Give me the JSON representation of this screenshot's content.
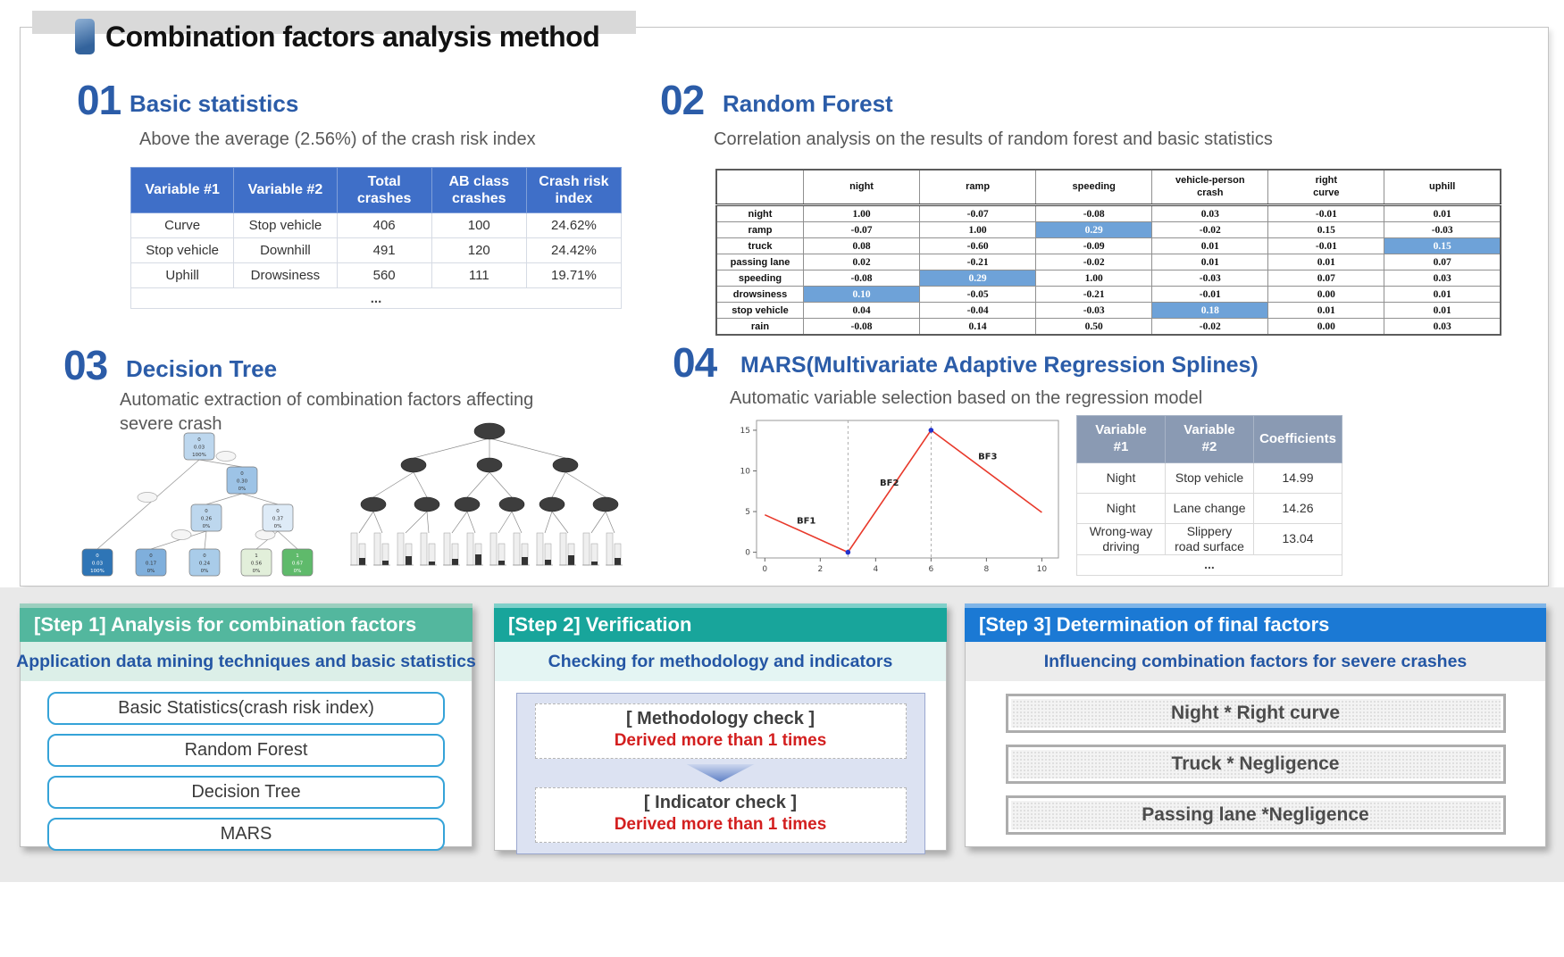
{
  "title": {
    "text": "Combination factors analysis method"
  },
  "icons": {
    "title_bullet": "rounded-rect-bullet",
    "verification_arrow": "chevron-down"
  },
  "colors": {
    "accent_blue": "#2b5ca8",
    "table_header_blue": "#3f6fc8",
    "matrix_highlight": "#6ea2d8",
    "mars_header_gray_blue": "#8a9ab3",
    "step1_teal": "#53b79e",
    "step2_teal": "#18a59b",
    "step3_blue": "#1b79d4",
    "alert_red": "#d31f1f",
    "line_red": "#e8392b"
  },
  "section1": {
    "number": "01",
    "title": "Basic statistics",
    "subtitle": "Above the average (2.56%) of the crash risk index",
    "table": {
      "headers": [
        "Variable #1",
        "Variable #2",
        "Total\ncrashes",
        "AB class\ncrashes",
        "Crash risk\nindex"
      ],
      "rows": [
        [
          "Curve",
          "Stop vehicle",
          "406",
          "100",
          "24.62%"
        ],
        [
          "Stop vehicle",
          "Downhill",
          "491",
          "120",
          "24.42%"
        ],
        [
          "Uphill",
          "Drowsiness",
          "560",
          "111",
          "19.71%"
        ]
      ],
      "ellipsis": "..."
    }
  },
  "section2": {
    "number": "02",
    "title": "Random Forest",
    "subtitle": "Correlation analysis on the results of random forest and basic statistics",
    "matrix": {
      "columns": [
        "night",
        "ramp",
        "speeding",
        "vehicle-person\ncrash",
        "right\ncurve",
        "uphill"
      ],
      "rows": [
        {
          "label": "night",
          "values": [
            "1.00",
            "-0.07",
            "-0.08",
            "0.03",
            "-0.01",
            "0.01"
          ],
          "highlight": []
        },
        {
          "label": "ramp",
          "values": [
            "-0.07",
            "1.00",
            "0.29",
            "-0.02",
            "0.15",
            "-0.03"
          ],
          "highlight": [
            2
          ]
        },
        {
          "label": "truck",
          "values": [
            "0.08",
            "-0.60",
            "-0.09",
            "0.01",
            "-0.01",
            "0.15"
          ],
          "highlight": [
            5
          ]
        },
        {
          "label": "passing lane",
          "values": [
            "0.02",
            "-0.21",
            "-0.02",
            "0.01",
            "0.01",
            "0.07"
          ],
          "highlight": []
        },
        {
          "label": "speeding",
          "values": [
            "-0.08",
            "0.29",
            "1.00",
            "-0.03",
            "0.07",
            "0.03"
          ],
          "highlight": [
            1
          ]
        },
        {
          "label": "drowsiness",
          "values": [
            "0.10",
            "-0.05",
            "-0.21",
            "-0.01",
            "0.00",
            "0.01"
          ],
          "highlight": [
            0
          ]
        },
        {
          "label": "stop vehicle",
          "values": [
            "0.04",
            "-0.04",
            "-0.03",
            "0.18",
            "0.01",
            "0.01"
          ],
          "highlight": [
            3
          ]
        },
        {
          "label": "rain",
          "values": [
            "-0.08",
            "0.14",
            "0.50",
            "-0.02",
            "0.00",
            "0.03"
          ],
          "highlight": []
        }
      ]
    }
  },
  "section3": {
    "number": "03",
    "title": "Decision Tree",
    "subtitle": "Automatic extraction of combination factors affecting\nsevere crash",
    "tree_left_nodes": [
      {
        "label": "0\n0.03\n100%",
        "color": "#bdd7ee"
      },
      {
        "label": "0\n0.30\n0%",
        "color": "#9dc3e6"
      },
      {
        "label": "0\n0.26\n0%",
        "color": "#bdd7ee"
      },
      {
        "label": "0\n0.37\n0%",
        "color": "#deebf7"
      },
      {
        "label": "0\n0.03\n100%",
        "color": "#2e75b6"
      },
      {
        "label": "0\n0.17\n0%",
        "color": "#7fafdc"
      },
      {
        "label": "0\n0.24\n0%",
        "color": "#a9cce9"
      },
      {
        "label": "1\n0.56\n0%",
        "color": "#e2efda"
      },
      {
        "label": "1\n0.67\n0%",
        "color": "#5fba6b"
      }
    ]
  },
  "section4": {
    "number": "04",
    "title": "MARS(Multivariate Adaptive Regression Splines)",
    "subtitle": "Automatic variable selection based on the regression model",
    "table": {
      "headers": [
        "Variable\n#1",
        "Variable\n#2",
        "Coefficients"
      ],
      "rows": [
        [
          "Night",
          "Stop vehicle",
          "14.99"
        ],
        [
          "Night",
          "Lane change",
          "14.26"
        ],
        [
          "Wrong-way\ndriving",
          "Slippery\nroad surface",
          "13.04"
        ]
      ],
      "ellipsis": "..."
    }
  },
  "chart_data": {
    "type": "line",
    "title": "",
    "xlabel": "",
    "ylabel": "",
    "points": [
      [
        0,
        4.6
      ],
      [
        3,
        0
      ],
      [
        6,
        15
      ],
      [
        10,
        4.9
      ]
    ],
    "segments": [
      "BF1",
      "BF2",
      "BF3"
    ],
    "knots": [
      3,
      6
    ],
    "markers": [
      [
        3,
        0
      ],
      [
        6,
        15
      ]
    ],
    "labels": [
      {
        "text": "BF1",
        "x": 1.15,
        "y": 3.5
      },
      {
        "text": "BF2",
        "x": 4.15,
        "y": 8.2
      },
      {
        "text": "BF3",
        "x": 7.7,
        "y": 11.4
      }
    ],
    "xticks": [
      0,
      2,
      4,
      6,
      8,
      10
    ],
    "yticks": [
      0,
      5,
      10,
      15
    ],
    "xlim": [
      -0.3,
      10.6
    ],
    "ylim": [
      -0.7,
      16.2
    ],
    "grid": false,
    "line_color": "#e8392b",
    "marker_color": "#2233cc"
  },
  "steps": [
    {
      "header": "[Step 1] Analysis for combination factors",
      "subtitle": "Application data mining techniques and basic statistics",
      "items": [
        "Basic Statistics(crash risk index)",
        "Random Forest",
        "Decision Tree",
        "MARS"
      ]
    },
    {
      "header": "[Step 2] Verification",
      "subtitle": "Checking for methodology and indicators",
      "checks": [
        {
          "title": "[ Methodology check ]",
          "note": "Derived more than 1 times"
        },
        {
          "title": "[ Indicator check ]",
          "note": "Derived more than 1 times"
        }
      ]
    },
    {
      "header": "[Step 3] Determination of final factors",
      "subtitle": "Influencing combination factors for severe crashes",
      "items": [
        "Night * Right curve",
        "Truck * Negligence",
        "Passing lane *Negligence"
      ]
    }
  ]
}
